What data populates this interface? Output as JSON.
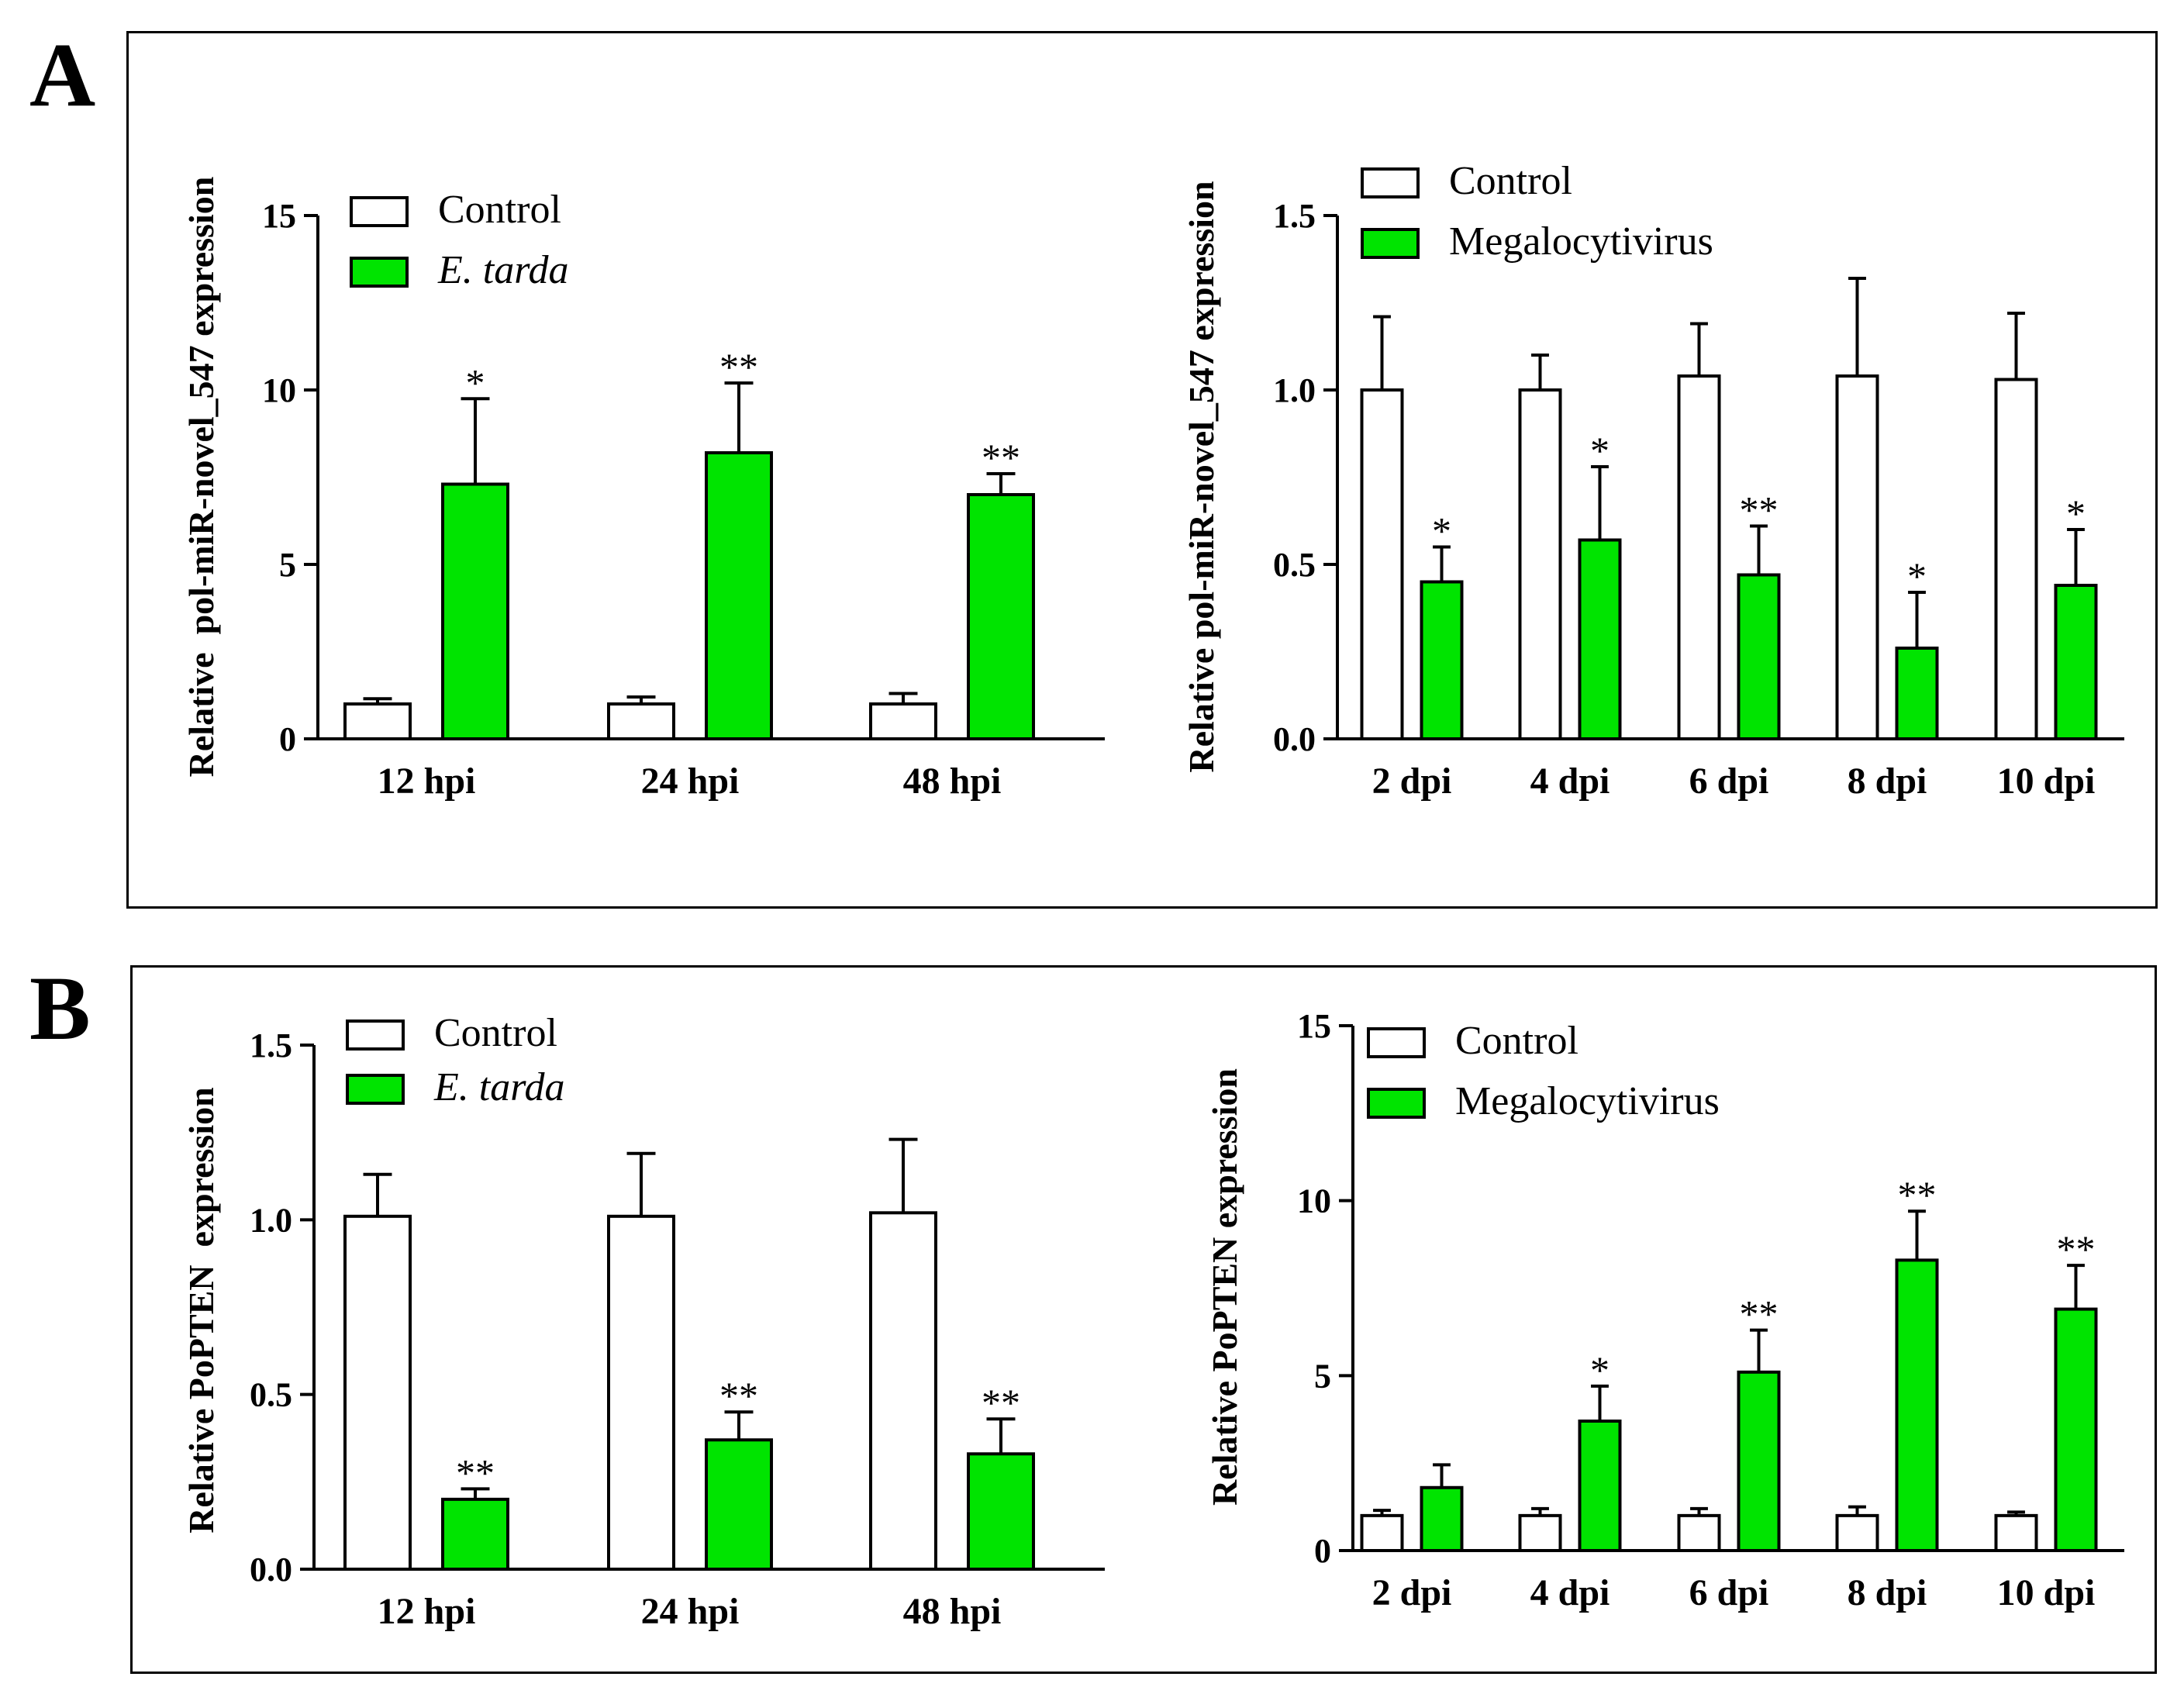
{
  "panels": {
    "A": {
      "label": "A"
    },
    "B": {
      "label": "B"
    }
  },
  "chart_data": [
    {
      "id": "A-left",
      "panel": "A",
      "type": "bar",
      "ylabel": "Relative  pol-miR-novel_547 expression",
      "categories": [
        "12 hpi",
        "24 hpi",
        "48 hpi"
      ],
      "ylim": [
        0,
        15
      ],
      "yticks": [
        0,
        5,
        10,
        15
      ],
      "ytick_labels": [
        "0",
        "5",
        "10",
        "15"
      ],
      "series": [
        {
          "name": "Control",
          "color": "#ffffff",
          "italic": false,
          "values": [
            1.0,
            1.0,
            1.0
          ],
          "errors": [
            0.15,
            0.2,
            0.3
          ],
          "significance": [
            "",
            "",
            ""
          ]
        },
        {
          "name": "E. tarda",
          "color": "#00e400",
          "italic": true,
          "values": [
            7.3,
            8.2,
            7.0
          ],
          "errors": [
            2.45,
            2.0,
            0.6
          ],
          "significance": [
            "*",
            "**",
            "**"
          ]
        }
      ]
    },
    {
      "id": "A-right",
      "panel": "A",
      "type": "bar",
      "ylabel": "Relative pol-miR-novel_547 expression",
      "categories": [
        "2 dpi",
        "4 dpi",
        "6 dpi",
        "8 dpi",
        "10 dpi"
      ],
      "ylim": [
        0,
        1.5
      ],
      "yticks": [
        0,
        0.5,
        1.0,
        1.5
      ],
      "ytick_labels": [
        "0.0",
        "0.5",
        "1.0",
        "1.5"
      ],
      "series": [
        {
          "name": "Control",
          "color": "#ffffff",
          "italic": false,
          "values": [
            1.0,
            1.0,
            1.04,
            1.04,
            1.03
          ],
          "errors": [
            0.21,
            0.1,
            0.15,
            0.28,
            0.19
          ],
          "significance": [
            "",
            "",
            "",
            "",
            ""
          ]
        },
        {
          "name": "Megalocytivirus",
          "color": "#00e400",
          "italic": false,
          "values": [
            0.45,
            0.57,
            0.47,
            0.26,
            0.44
          ],
          "errors": [
            0.1,
            0.21,
            0.14,
            0.16,
            0.16
          ],
          "significance": [
            "*",
            "*",
            "**",
            "*",
            "*"
          ]
        }
      ]
    },
    {
      "id": "B-left",
      "panel": "B",
      "type": "bar",
      "ylabel": "Relative PoPTEN  expression",
      "categories": [
        "12 hpi",
        "24 hpi",
        "48 hpi"
      ],
      "ylim": [
        0,
        1.5
      ],
      "yticks": [
        0,
        0.5,
        1.0,
        1.5
      ],
      "ytick_labels": [
        "0.0",
        "0.5",
        "1.0",
        "1.5"
      ],
      "series": [
        {
          "name": "Control",
          "color": "#ffffff",
          "italic": false,
          "values": [
            1.01,
            1.01,
            1.02
          ],
          "errors": [
            0.12,
            0.18,
            0.21
          ],
          "significance": [
            "",
            "",
            ""
          ]
        },
        {
          "name": "E. tarda",
          "color": "#00e400",
          "italic": true,
          "values": [
            0.2,
            0.37,
            0.33
          ],
          "errors": [
            0.03,
            0.08,
            0.1
          ],
          "significance": [
            "**",
            "**",
            "**"
          ]
        }
      ]
    },
    {
      "id": "B-right",
      "panel": "B",
      "type": "bar",
      "ylabel": "Relative PoPTEN expression",
      "categories": [
        "2 dpi",
        "4 dpi",
        "6 dpi",
        "8 dpi",
        "10 dpi"
      ],
      "ylim": [
        0,
        15
      ],
      "yticks": [
        0,
        5,
        10,
        15
      ],
      "ytick_labels": [
        "0",
        "5",
        "10",
        "15"
      ],
      "series": [
        {
          "name": "Control",
          "color": "#ffffff",
          "italic": false,
          "values": [
            1.0,
            1.0,
            1.0,
            1.0,
            1.0
          ],
          "errors": [
            0.15,
            0.2,
            0.2,
            0.25,
            0.1
          ],
          "significance": [
            "",
            "",
            "",
            "",
            ""
          ]
        },
        {
          "name": "Megalocytivirus",
          "color": "#00e400",
          "italic": false,
          "values": [
            1.8,
            3.7,
            5.1,
            8.3,
            6.9
          ],
          "errors": [
            0.65,
            1.0,
            1.2,
            1.4,
            1.25
          ],
          "significance": [
            "",
            "*",
            "**",
            "**",
            "**"
          ]
        }
      ]
    }
  ]
}
